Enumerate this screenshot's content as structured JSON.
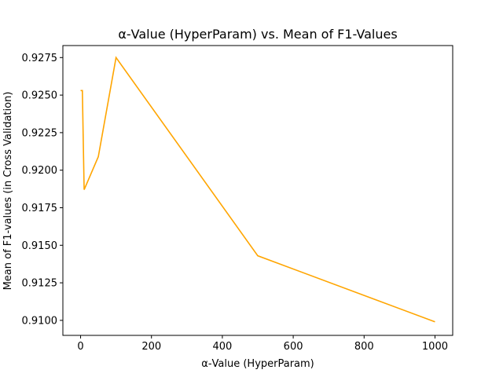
{
  "chart_data": {
    "type": "line",
    "title": "α-Value (HyperParam) vs. Mean of F1-Values",
    "xlabel": "α-Value (HyperParam)",
    "ylabel": "Mean of F1-values (in Cross Validation)",
    "xlim": [
      -50,
      1050
    ],
    "ylim": [
      0.909,
      0.9283
    ],
    "xticks": [
      0,
      200,
      400,
      600,
      800,
      1000
    ],
    "xtick_labels": [
      "0",
      "200",
      "400",
      "600",
      "800",
      "1000"
    ],
    "yticks": [
      0.91,
      0.9125,
      0.915,
      0.9175,
      0.92,
      0.9225,
      0.925,
      0.9275
    ],
    "ytick_labels": [
      "0.9100",
      "0.9125",
      "0.9150",
      "0.9175",
      "0.9200",
      "0.9225",
      "0.9250",
      "0.9275"
    ],
    "grid": false,
    "series": [
      {
        "color": "#ffa500",
        "x": [
          0.001,
          0.01,
          0.1,
          1,
          5,
          10,
          50,
          100,
          500,
          1000
        ],
        "y": [
          0.9253,
          0.9253,
          0.9253,
          0.9253,
          0.9253,
          0.9187,
          0.9209,
          0.9275,
          0.9143,
          0.9099
        ]
      }
    ]
  }
}
